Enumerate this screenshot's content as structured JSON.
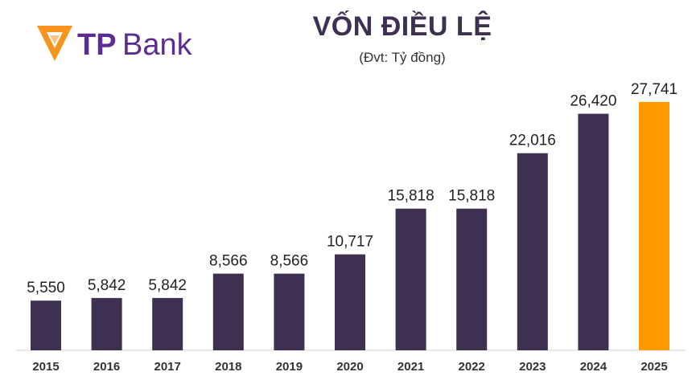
{
  "brand": {
    "logo_text_tp": "TP",
    "logo_text_bank": "Bank",
    "logo_orange": "#f7941d",
    "logo_purple": "#5c2d91"
  },
  "header": {
    "title": "VỐN ĐIỀU LỆ",
    "subtitle": "(Đvt: Tỷ đồng)"
  },
  "chart_data": {
    "type": "bar",
    "title": "VỐN ĐIỀU LỆ",
    "subtitle": "(Đvt: Tỷ đồng)",
    "categories": [
      "2015",
      "2016",
      "2017",
      "2018",
      "2019",
      "2020",
      "2021",
      "2022",
      "2023",
      "2024",
      "2025"
    ],
    "values": [
      5550,
      5842,
      5842,
      8566,
      8566,
      10717,
      15818,
      15818,
      22016,
      26420,
      27741
    ],
    "value_labels": [
      "5,550",
      "5,842",
      "5,842",
      "8,566",
      "8,566",
      "10,717",
      "15,818",
      "15,818",
      "22,016",
      "26,420",
      "27,741"
    ],
    "xlabel": "",
    "ylabel": "",
    "ylim": [
      0,
      28000
    ],
    "grid": false,
    "legend": "none",
    "bar_color": "#3d3050",
    "highlight_color": "#ff9900",
    "highlight_index": 10
  }
}
